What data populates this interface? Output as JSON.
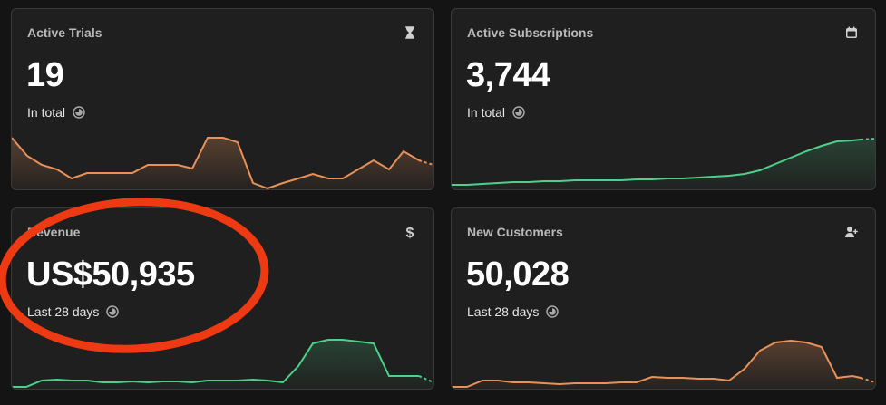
{
  "cards": [
    {
      "title": "Active Trials",
      "value": "19",
      "subtitle": "In total",
      "icon": "hourglass-icon",
      "trend_color": "#e8925a"
    },
    {
      "title": "Active Subscriptions",
      "value": "3,744",
      "subtitle": "In total",
      "icon": "calendar-icon",
      "trend_color": "#4fd08a"
    },
    {
      "title": "Revenue",
      "value": "US$50,935",
      "subtitle": "Last 28 days",
      "icon": "dollar-icon",
      "trend_color": "#4fd08a"
    },
    {
      "title": "New Customers",
      "value": "50,028",
      "subtitle": "Last 28 days",
      "icon": "add-user-icon",
      "trend_color": "#e8925a"
    }
  ],
  "annotation": {
    "color": "#ee3a12"
  }
}
